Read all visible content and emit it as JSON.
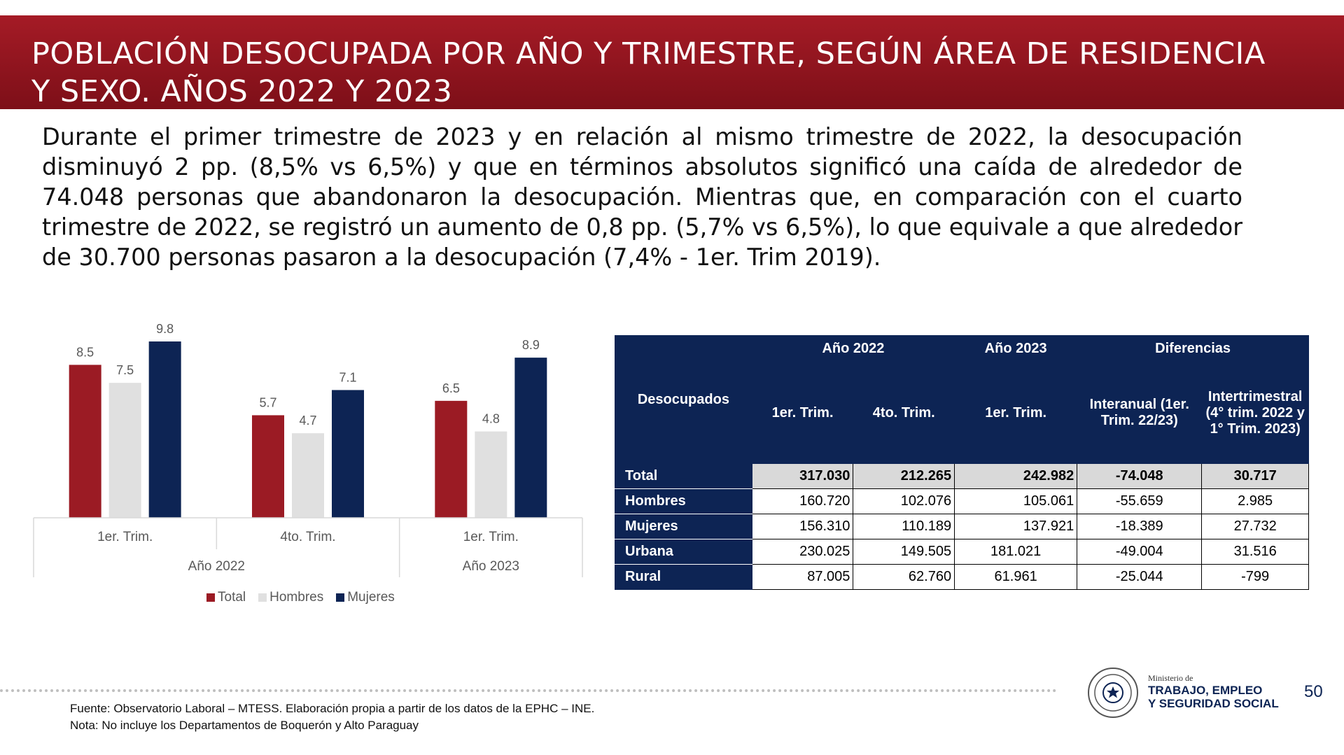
{
  "header": {
    "title": "POBLACIÓN DESOCUPADA POR AÑO Y TRIMESTRE, SEGÚN ÁREA DE RESIDENCIA Y SEXO. AÑOS 2022 Y 2023"
  },
  "intro": {
    "text": "Durante el primer trimestre de 2023 y en relación al mismo trimestre de 2022, la desocupación disminuyó 2 pp. (8,5% vs 6,5%) y que en términos absolutos significó una caída de alrededor de 74.048 personas que abandonaron la desocupación. Mientras que, en comparación con el cuarto trimestre de 2022, se registró un aumento de 0,8 pp. (5,7% vs 6,5%), lo que equivale a que alrededor de 30.700 personas pasaron a la desocupación (7,4% - 1er. Trim 2019)."
  },
  "chart_data": {
    "type": "bar",
    "categories": [
      "1er. Trim.",
      "4to. Trim.",
      "1er. Trim."
    ],
    "groups": [
      {
        "label": "Año 2022",
        "categories": [
          "1er. Trim.",
          "4to. Trim."
        ]
      },
      {
        "label": "Año 2023",
        "categories": [
          "1er. Trim."
        ]
      }
    ],
    "series": [
      {
        "name": "Total",
        "values": [
          8.5,
          5.7,
          6.5
        ],
        "color": "#9b1b24"
      },
      {
        "name": "Hombres",
        "values": [
          7.5,
          4.7,
          4.8
        ],
        "color": "#e0e0e0"
      },
      {
        "name": "Mujeres",
        "values": [
          9.8,
          7.1,
          8.9
        ],
        "color": "#0d2454"
      }
    ],
    "ylim": [
      0,
      10.5
    ],
    "grid": false,
    "legend": "bottom"
  },
  "table": {
    "stub_header": "Desocupados",
    "group_headers": [
      "Año 2022",
      "Año 2023",
      "Diferencias"
    ],
    "sub_headers": [
      "1er. Trim.",
      "4to. Trim.",
      "1er. Trim.",
      "Interanual (1er. Trim. 22/23)",
      "Intertrimestral (4° trim. 2022 y 1° Trim. 2023)"
    ],
    "rows": [
      {
        "label": "Total",
        "values": [
          "317.030",
          "212.265",
          "242.982",
          "-74.048",
          "30.717"
        ]
      },
      {
        "label": "Hombres",
        "values": [
          "160.720",
          "102.076",
          "105.061",
          "-55.659",
          "2.985"
        ]
      },
      {
        "label": "Mujeres",
        "values": [
          "156.310",
          "110.189",
          "137.921",
          "-18.389",
          "27.732"
        ]
      },
      {
        "label": "Urbana",
        "values": [
          "230.025",
          "149.505",
          "181.021",
          "-49.004",
          "31.516"
        ]
      },
      {
        "label": "Rural",
        "values": [
          "87.005",
          "62.760",
          "61.961",
          "-25.044",
          "-799"
        ]
      }
    ]
  },
  "footer": {
    "source": "Fuente: Observatorio Laboral – MTESS. Elaboración propia a partir de los datos de la EPHC – INE.",
    "note": "Nota: No incluye los Departamentos de Boquerón y Alto Paraguay",
    "ministry_small": "Ministerio de",
    "ministry_line1": "TRABAJO, EMPLEO",
    "ministry_line2": "Y SEGURIDAD SOCIAL",
    "page_number": "50"
  },
  "colors": {
    "brand_red": "#9b1b24",
    "brand_navy": "#0d2454",
    "light_gray": "#e0e0e0"
  }
}
